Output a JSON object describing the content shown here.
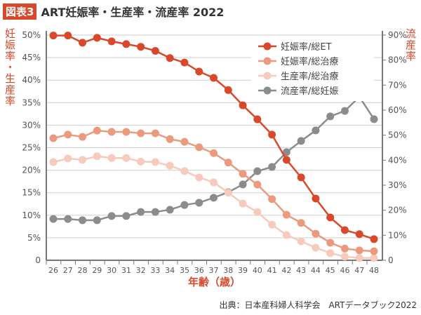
{
  "header": {
    "badge": "図表3",
    "title": "ART妊娠率・生産率・流産率 2022"
  },
  "source": "出典：日本産科婦人科学会　ARTデータブック2022",
  "chart_data": {
    "type": "line",
    "title": "ART妊娠率・生産率・流産率 2022",
    "xlabel": "年齢（歳）",
    "ylabel_left": "妊娠率・生産率",
    "ylabel_right": "流産率",
    "x": [
      26,
      27,
      28,
      29,
      30,
      31,
      32,
      33,
      34,
      35,
      36,
      37,
      38,
      39,
      40,
      41,
      42,
      43,
      44,
      45,
      46,
      47,
      48
    ],
    "ylim_left": [
      0,
      50
    ],
    "ylim_right": [
      0,
      90
    ],
    "yticks_left": [
      "0",
      "5%",
      "10%",
      "15%",
      "20%",
      "25%",
      "30%",
      "35%",
      "40%",
      "45%",
      "50%"
    ],
    "yticks_right": [
      "0",
      "10%",
      "20%",
      "30%",
      "40%",
      "50%",
      "60%",
      "70%",
      "80%",
      "90%"
    ],
    "grid": true,
    "legend_position": "top-right",
    "series": [
      {
        "name": "妊娠率/総ET",
        "axis": "left",
        "color": "#d9482b",
        "values": [
          49.9,
          49.9,
          48.3,
          49.4,
          48.6,
          48.0,
          47.4,
          46.5,
          44.9,
          43.9,
          41.9,
          40.5,
          37.8,
          34.4,
          31.3,
          27.9,
          22.3,
          18.4,
          13.7,
          9.5,
          6.7,
          5.8,
          4.7
        ]
      },
      {
        "name": "妊娠率/総治療",
        "axis": "left",
        "color": "#eb9a7d",
        "values": [
          27.1,
          27.9,
          27.4,
          28.8,
          28.5,
          28.5,
          28.2,
          28.2,
          26.9,
          26.3,
          25.1,
          23.8,
          21.7,
          19.2,
          16.8,
          13.6,
          10.1,
          8.3,
          5.9,
          3.9,
          2.6,
          2.2,
          2.0
        ]
      },
      {
        "name": "生産率/総治療",
        "axis": "left",
        "color": "#f6cbbb",
        "values": [
          21.8,
          22.6,
          22.3,
          23.1,
          22.7,
          22.7,
          21.9,
          21.8,
          21.0,
          19.8,
          18.4,
          17.3,
          15.0,
          12.6,
          10.7,
          7.9,
          5.6,
          4.2,
          2.8,
          1.6,
          0.8,
          0.5,
          0.5
        ]
      },
      {
        "name": "流産率/総妊娠",
        "axis": "right",
        "color": "#8c8c8c",
        "values": [
          16.5,
          16.5,
          16.0,
          16.0,
          17.7,
          17.7,
          19.3,
          19.3,
          20.2,
          22.1,
          23.0,
          25.0,
          27.2,
          30.3,
          35.6,
          37.3,
          43.2,
          47.7,
          51.9,
          57.5,
          59.7,
          65.3,
          56.4
        ]
      }
    ]
  }
}
